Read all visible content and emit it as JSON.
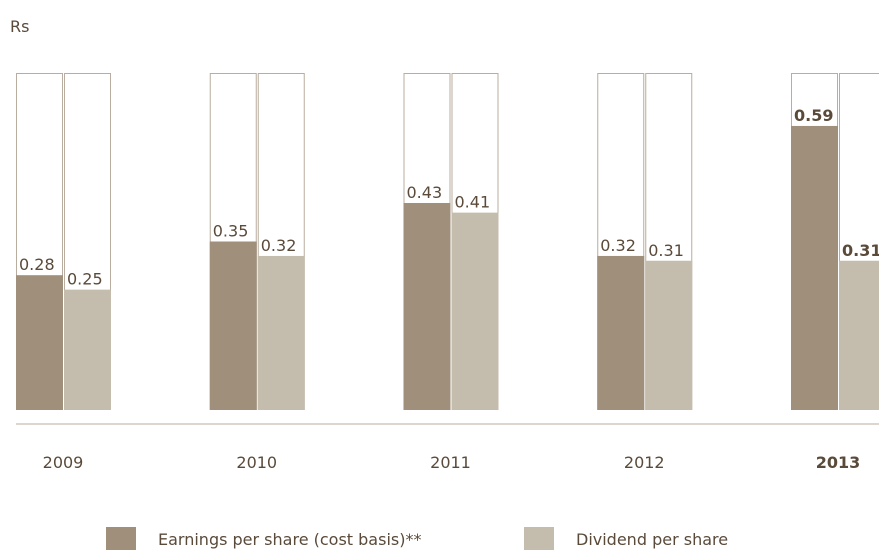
{
  "chart_data": {
    "type": "bar",
    "axis_label": "Rs",
    "categories": [
      "2009",
      "2010",
      "2011",
      "2012",
      "2013"
    ],
    "series": [
      {
        "name": "Earnings per share (cost basis)**",
        "color": "#a08f7a",
        "label_color": "#5a4a3a",
        "values": [
          0.28,
          0.35,
          0.43,
          0.32,
          0.59
        ]
      },
      {
        "name": "Dividend per share",
        "color": "#c4bdad",
        "label_color": "#c4bdad",
        "values": [
          0.25,
          0.32,
          0.41,
          0.31,
          0.31
        ]
      }
    ],
    "ylim": [
      0,
      0.7
    ],
    "bold_categories": [
      4
    ]
  }
}
